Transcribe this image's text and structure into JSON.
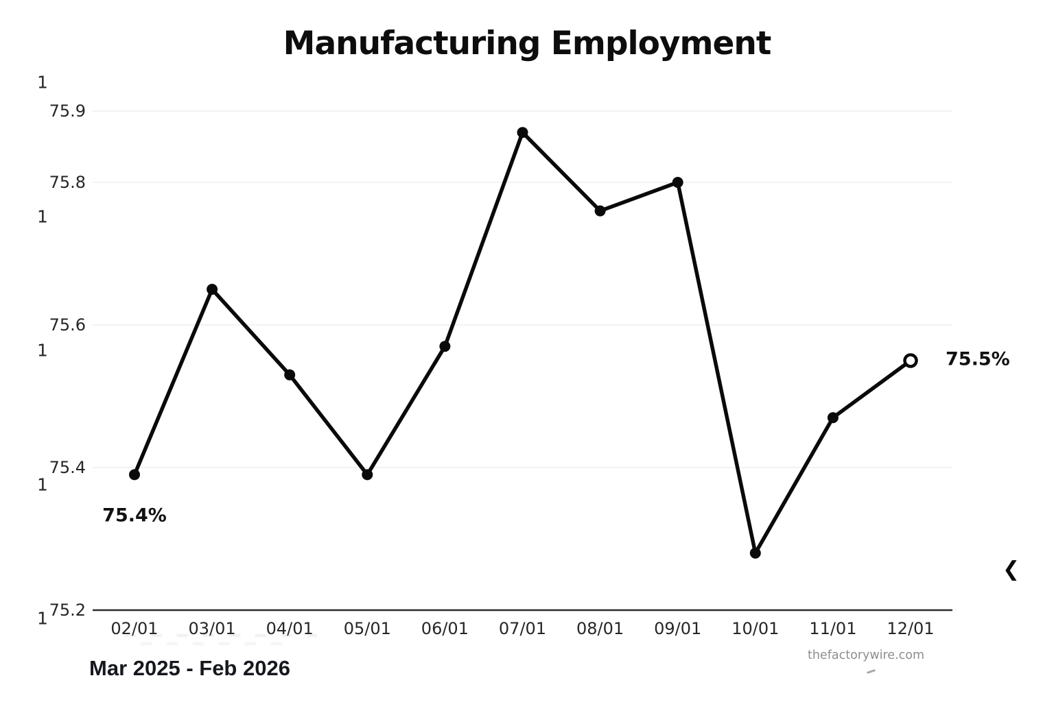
{
  "header": {
    "title": "Manufacturing Employment"
  },
  "footer": {
    "period_label": "Mar 2025 - Feb 2026",
    "watermark": "thefactorywire.com"
  },
  "decorations": {
    "chevron_glyph": "❮"
  },
  "colors": {
    "line": "#0a0a0a",
    "marker_fill": "#0a0a0a",
    "open_marker_fill": "#ffffff",
    "gridline": "#eeeeee",
    "axis": "#2b2b2b",
    "tick_text": "#262626",
    "watermark_text": "#8d8d8d"
  },
  "chart_data": {
    "type": "line",
    "title": "Manufacturing Employment",
    "xlabel": "",
    "ylabel": "",
    "x_labels": [
      "02/01",
      "03/01",
      "04/01",
      "05/01",
      "06/01",
      "07/01",
      "08/01",
      "09/01",
      "10/01",
      "11/01",
      "12/01"
    ],
    "series": [
      {
        "name": "Manufacturing Employment (%)",
        "values": [
          75.39,
          75.65,
          75.53,
          75.39,
          75.57,
          75.87,
          75.76,
          75.8,
          75.28,
          75.47,
          75.55
        ]
      }
    ],
    "y_ticks": [
      75.9,
      75.8,
      75.6,
      75.4,
      75.2
    ],
    "gridline_ticks": [
      75.9,
      75.8,
      75.6,
      75.4
    ],
    "secondary_y_tick_labels": [
      "1",
      "1",
      "1",
      "1",
      "1"
    ],
    "ylim": [
      75.2,
      75.95
    ],
    "grid": "horizontal only, at labeled ticks",
    "legend": "none",
    "marker": "filled black circles; final point drawn as open circle",
    "annotations": {
      "first": "75.4%",
      "last": "75.5%"
    }
  }
}
